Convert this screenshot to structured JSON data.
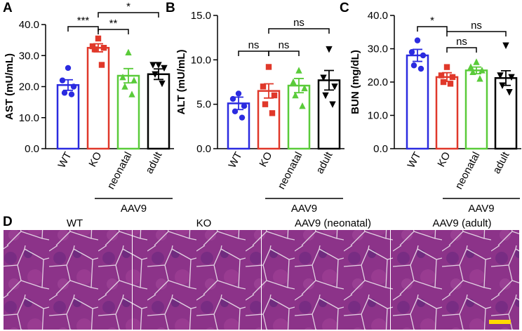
{
  "chart_data": [
    {
      "type": "bar",
      "panel_label": "A",
      "y_label": "AST (mU/mL)",
      "categories": [
        "WT",
        "KO",
        "neonatal",
        "adult"
      ],
      "colors": [
        "#2b2be0",
        "#e0382a",
        "#5acb3a",
        "#000000"
      ],
      "markers": [
        "circle",
        "square",
        "triangle-up",
        "triangle-down"
      ],
      "values": [
        20.5,
        32.5,
        23.5,
        24
      ],
      "errors": [
        1.7,
        1.3,
        2.3,
        1.7
      ],
      "points": [
        [
          26,
          22,
          20,
          18,
          17.5
        ],
        [
          35.5,
          33,
          32.5,
          32,
          27
        ],
        [
          31,
          23,
          22,
          20,
          17.5
        ],
        [
          27,
          27,
          26,
          24,
          21
        ]
      ],
      "ylim": [
        0,
        40
      ],
      "yticks": [
        {
          "value": 0,
          "label": "0.0"
        },
        {
          "value": 10,
          "label": "10.0"
        },
        {
          "value": 20,
          "label": "20.0"
        },
        {
          "value": 30,
          "label": "30.0"
        },
        {
          "value": 40,
          "label": "40.0"
        }
      ],
      "group": {
        "label": "AAV9",
        "members": [
          "neonatal",
          "adult"
        ]
      },
      "comparisons": [
        {
          "from": "WT",
          "to": "KO",
          "label": "***"
        },
        {
          "from": "KO",
          "to": "neonatal",
          "label": "**"
        },
        {
          "from": "KO",
          "to": "adult",
          "label": "*"
        }
      ]
    },
    {
      "type": "bar",
      "panel_label": "B",
      "y_label": "ALT (mU/mL)",
      "categories": [
        "WT",
        "KO",
        "neonatal",
        "adult"
      ],
      "colors": [
        "#2b2be0",
        "#e0382a",
        "#5acb3a",
        "#000000"
      ],
      "markers": [
        "circle",
        "square",
        "triangle-up",
        "triangle-down"
      ],
      "values": [
        5.1,
        6.5,
        7.1,
        7.7
      ],
      "errors": [
        0.7,
        0.8,
        0.8,
        1.1
      ],
      "points": [
        [
          6.2,
          5.6,
          4.8,
          4.2,
          3.5
        ],
        [
          9.2,
          7,
          6,
          5,
          4
        ],
        [
          8.8,
          7.5,
          6.8,
          6,
          4.8
        ],
        [
          11.2,
          8,
          7,
          6,
          5
        ]
      ],
      "ylim": [
        0,
        15
      ],
      "yticks": [
        {
          "value": 0,
          "label": "0.0"
        },
        {
          "value": 5,
          "label": "5.0"
        },
        {
          "value": 10,
          "label": "10.0"
        },
        {
          "value": 15,
          "label": "15.0"
        }
      ],
      "group": {
        "label": "AAV9",
        "members": [
          "neonatal",
          "adult"
        ]
      },
      "comparisons": [
        {
          "from": "WT",
          "to": "KO",
          "label": "ns"
        },
        {
          "from": "KO",
          "to": "neonatal",
          "label": "ns"
        },
        {
          "from": "KO",
          "to": "adult",
          "label": "ns"
        }
      ]
    },
    {
      "type": "bar",
      "panel_label": "C",
      "y_label": "BUN (mg/dL)",
      "categories": [
        "WT",
        "KO",
        "neonatal",
        "adult"
      ],
      "colors": [
        "#2b2be0",
        "#e0382a",
        "#5acb3a",
        "#000000"
      ],
      "markers": [
        "circle",
        "square",
        "triangle-up",
        "triangle-down"
      ],
      "values": [
        28,
        21.5,
        23.5,
        21.2
      ],
      "errors": [
        1.8,
        1.3,
        1,
        2.2
      ],
      "points": [
        [
          32.5,
          29,
          28,
          25,
          24
        ],
        [
          24.5,
          22,
          21.5,
          20,
          19.5
        ],
        [
          26,
          24.5,
          23.5,
          23,
          21
        ],
        [
          31,
          22,
          21.5,
          19,
          17
        ]
      ],
      "ylim": [
        0,
        40
      ],
      "yticks": [
        {
          "value": 0,
          "label": "0.0"
        },
        {
          "value": 10,
          "label": "10.0"
        },
        {
          "value": 20,
          "label": "20.0"
        },
        {
          "value": 30,
          "label": "30.0"
        },
        {
          "value": 40,
          "label": "40.0"
        }
      ],
      "group": {
        "label": "AAV9",
        "members": [
          "neonatal",
          "adult"
        ]
      },
      "comparisons": [
        {
          "from": "WT",
          "to": "KO",
          "label": "*"
        },
        {
          "from": "KO",
          "to": "neonatal",
          "label": "ns"
        },
        {
          "from": "KO",
          "to": "adult",
          "label": "ns"
        }
      ]
    }
  ],
  "histology": {
    "panel_label": "D",
    "images": [
      {
        "title": "WT"
      },
      {
        "title": "KO"
      },
      {
        "title": "AAV9 (neonatal)"
      },
      {
        "title": "AAV9 (adult)"
      }
    ]
  }
}
